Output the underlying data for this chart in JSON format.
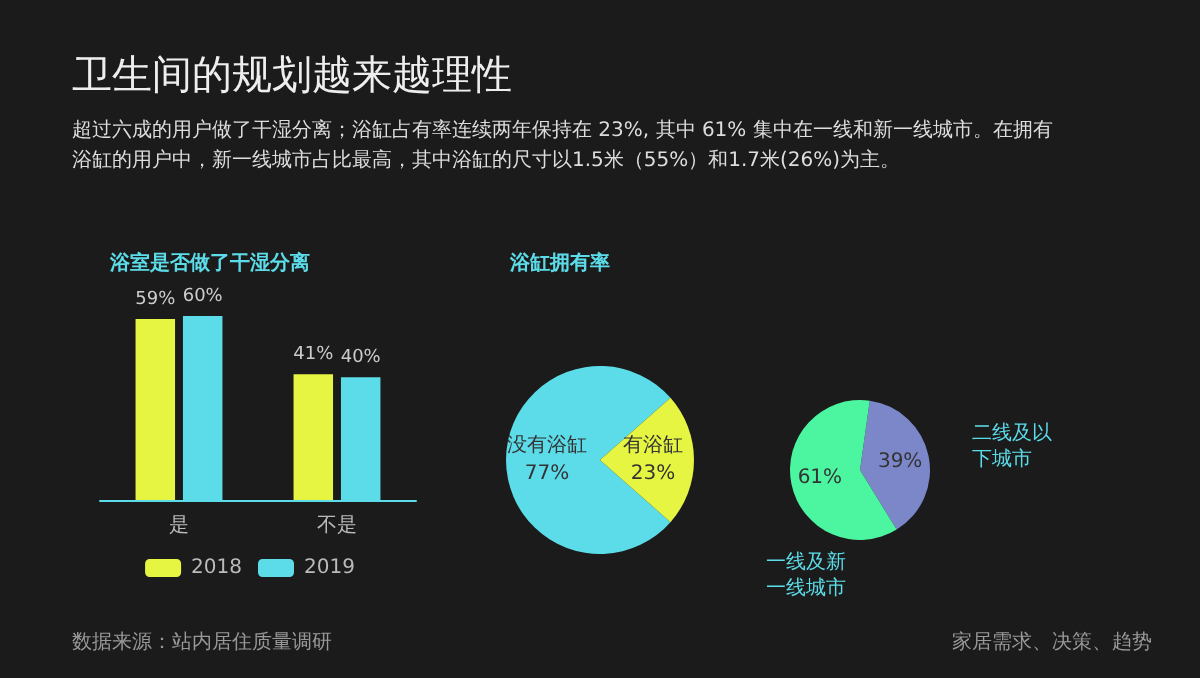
{
  "chart_data": [
    {
      "type": "other",
      "title": "卫生间的规划越来越理性",
      "subtitle": "超过六成的用户做了干湿分离；浴缸占有率连续两年保持在 23%, 其中 61% 集中在一线和新一线城市。在拥有浴缸的用户中，新一线城市占比最高，其中浴缸的尺寸以1.5米（55%）和1.7米(26%)为主。",
      "annotations": [
        "数据来源：站内居住质量调研",
        "家居需求、决策、趋势"
      ]
    },
    {
      "type": "bar",
      "title": "浴室是否做了干湿分离",
      "categories": [
        "是",
        "不是"
      ],
      "legend": "bottom",
      "series": [
        {
          "name": "2018",
          "color": "#e5f542",
          "values": [
            59,
            41
          ],
          "value_labels": [
            "59%",
            "41%"
          ]
        },
        {
          "name": "2019",
          "color": "#5cdbe8",
          "values": [
            60,
            40
          ],
          "value_labels": [
            "60%",
            "40%"
          ]
        }
      ]
    },
    {
      "type": "pie",
      "title": "浴缸拥有率",
      "categories": [
        "没有浴缸",
        "有浴缸"
      ],
      "values": [
        77,
        23
      ],
      "value_labels": [
        "77%",
        "23%"
      ],
      "colors": [
        "#5cdbe8",
        "#e5f542"
      ]
    },
    {
      "type": "pie",
      "categories": [
        "二线及以下城市",
        "一线及新一线城市"
      ],
      "values": [
        39,
        61
      ],
      "value_labels": [
        "39%",
        "61%"
      ],
      "colors": [
        "#7b87c8",
        "#4cf5a0"
      ]
    }
  ]
}
